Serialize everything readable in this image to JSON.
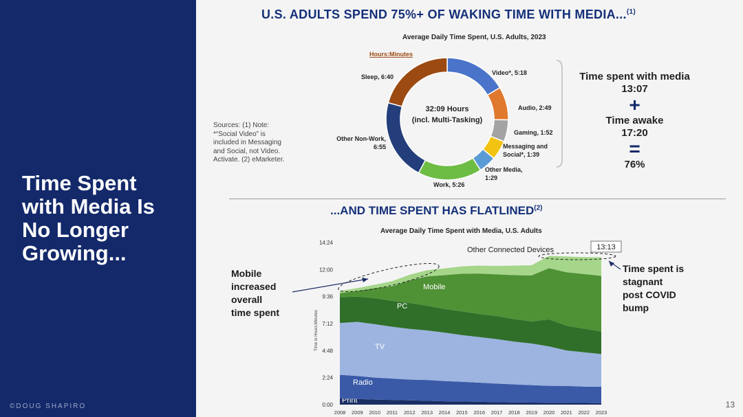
{
  "sidebar": {
    "title": "Time Spent\nwith Media Is\nNo Longer\nGrowing...",
    "credit": "©DOUG SHAPIRO"
  },
  "slide": {
    "headline": "U.S. ADULTS SPEND 75%+ OF WAKING TIME WITH MEDIA...",
    "headline_note": "(1)",
    "section2_title": "...AND TIME SPENT HAS FLATLINED",
    "section2_note": "(2)",
    "page_number": "13",
    "sources": "Sources: (1) Note:\n*“Social Video” is\nincluded in Messaging\nand Social, not Video.\nActivate. (2) eMarketer."
  },
  "media_summary": {
    "line1": "Time spent with media",
    "line2": "13:07",
    "plus": "+",
    "line3": "Time awake",
    "line4": "17:20",
    "equals": "=",
    "result": "76%"
  },
  "chart_data": [
    {
      "type": "pie",
      "title": "Average Daily Time Spent, U.S. Adults, 2023",
      "unit_label": "Hours:Minutes",
      "center_text": [
        "32:09 Hours",
        "(incl. Multi-Tasking)"
      ],
      "slices": [
        {
          "label": "Video*, 5:18",
          "value": 318,
          "color": "#4a74c9"
        },
        {
          "label": "Audio, 2:49",
          "value": 169,
          "color": "#e0782e"
        },
        {
          "label": "Gaming, 1:52",
          "value": 112,
          "color": "#a3a3a3"
        },
        {
          "label": "Messaging and Social*, 1:39",
          "value": 99,
          "color": "#f2c311"
        },
        {
          "label": "Other Media, 1:29",
          "value": 89,
          "color": "#5b9bd5"
        },
        {
          "label": "Work, 5:26",
          "value": 326,
          "color": "#6dbd45"
        },
        {
          "label": "Other Non-Work, 6:55",
          "value": 415,
          "color": "#233e7a"
        },
        {
          "label": "Sleep, 6:40",
          "value": 400,
          "color": "#9c4a12"
        }
      ]
    },
    {
      "type": "area",
      "title": "Average Daily Time Spent with Media, U.S. Adults",
      "ylabel": "Time in Hours:Minutes",
      "ylim": [
        0,
        14.4
      ],
      "yticks": [
        "0:00",
        "2:24",
        "4:48",
        "7:12",
        "9:36",
        "12:00",
        "14:24"
      ],
      "x": [
        "2008",
        "2009",
        "2010",
        "2011",
        "2012",
        "2013",
        "2014",
        "2015",
        "2016",
        "2017",
        "2018",
        "2019",
        "2020",
        "2021",
        "2022",
        "2023"
      ],
      "series": [
        {
          "name": "Print",
          "color": "#1b2f64",
          "values": [
            0.55,
            0.5,
            0.45,
            0.42,
            0.38,
            0.34,
            0.3,
            0.28,
            0.25,
            0.22,
            0.2,
            0.18,
            0.17,
            0.16,
            0.15,
            0.14
          ]
        },
        {
          "name": "Radio",
          "color": "#3a5aa8",
          "values": [
            2.1,
            2.05,
            1.95,
            1.9,
            1.85,
            1.85,
            1.8,
            1.75,
            1.7,
            1.65,
            1.6,
            1.55,
            1.5,
            1.5,
            1.45,
            1.45
          ]
        },
        {
          "name": "TV",
          "color": "#9db4e0",
          "values": [
            4.6,
            4.8,
            4.75,
            4.6,
            4.5,
            4.4,
            4.3,
            4.15,
            4.05,
            3.95,
            3.8,
            3.7,
            3.5,
            3.15,
            3.05,
            2.9
          ]
        },
        {
          "name": "PC",
          "color": "#2f6f2a",
          "values": [
            2.3,
            2.25,
            2.3,
            2.3,
            2.3,
            2.2,
            2.1,
            2.1,
            2.05,
            2.05,
            2.0,
            1.95,
            2.4,
            2.2,
            2.1,
            2.0
          ]
        },
        {
          "name": "Mobile",
          "color": "#4f9135",
          "values": [
            0.35,
            0.5,
            0.9,
            1.3,
            2.0,
            2.6,
            3.0,
            3.35,
            3.6,
            3.7,
            3.9,
            4.1,
            4.55,
            4.75,
            4.85,
            4.95
          ]
        },
        {
          "name": "Other Connected Devices",
          "color": "#a5d68a",
          "values": [
            0.2,
            0.25,
            0.3,
            0.45,
            0.5,
            0.55,
            0.6,
            0.65,
            0.7,
            0.75,
            0.85,
            0.9,
            1.1,
            1.4,
            1.5,
            1.65
          ]
        }
      ],
      "annotations": {
        "peak_value": "13:13",
        "left_note": "Mobile\nincreased\noverall\ntime spent",
        "right_note": "Time spent is\nstagnant\npost COVID\nbump"
      }
    }
  ]
}
